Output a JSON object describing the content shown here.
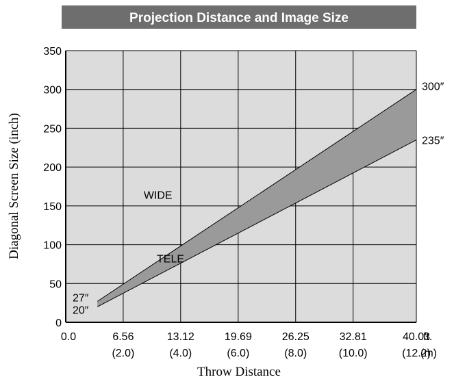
{
  "chart_data": {
    "type": "area",
    "title": "Projection Distance and Image Size",
    "xlabel": "Throw Distance",
    "ylabel": "Diagonal Screen Size (inch)",
    "xlim": [
      0,
      40.03
    ],
    "ylim": [
      0,
      350
    ],
    "grid": true,
    "x_unit_primary": "ft.",
    "x_unit_secondary": "(m)",
    "x_ticks_ft": [
      "0.0",
      "6.56",
      "13.12",
      "19.69",
      "26.25",
      "32.81",
      "40.03"
    ],
    "x_ticks_m": [
      "",
      "(2.0)",
      "(4.0)",
      "(6.0)",
      "(8.0)",
      "(10.0)",
      "(12.2)"
    ],
    "x_tick_values": [
      0,
      6.56,
      13.12,
      19.69,
      26.25,
      32.81,
      40.03
    ],
    "y_ticks": [
      "0",
      "50",
      "100",
      "150",
      "200",
      "250",
      "300",
      "350"
    ],
    "y_tick_values": [
      0,
      50,
      100,
      150,
      200,
      250,
      300,
      350
    ],
    "series": [
      {
        "name": "WIDE",
        "x": [
          3.61,
          40.03
        ],
        "y": [
          27,
          300
        ],
        "end_label": "300″",
        "start_label": "27″"
      },
      {
        "name": "TELE",
        "x": [
          3.61,
          40.03
        ],
        "y": [
          20,
          235
        ],
        "end_label": "235″",
        "start_label": "20″"
      }
    ],
    "colors": {
      "band": "#9a9a9a",
      "plot_bg": "#dcdcdc",
      "title_bg": "#6e6e6e",
      "title_text": "#ffffff"
    }
  }
}
